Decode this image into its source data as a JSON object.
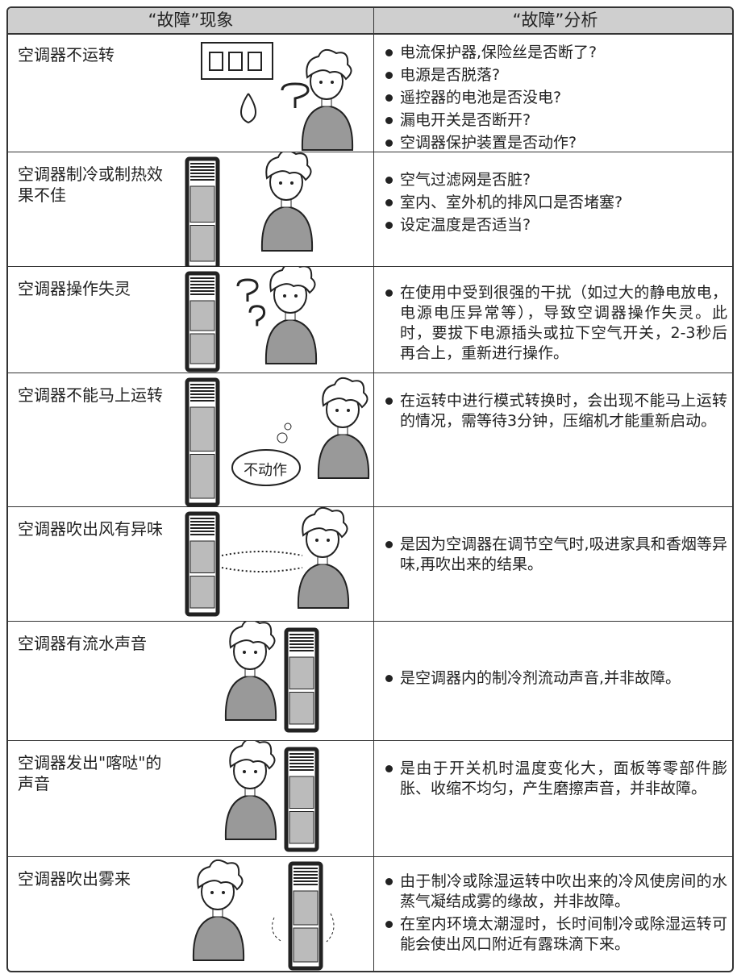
{
  "table": {
    "headers": [
      "“故障”现象",
      "“故障”分析"
    ],
    "rows": [
      {
        "symptom": "空调器不运转",
        "items": [
          "电流保护器,保险丝是否断了?",
          "电源是否脱落?",
          "遥控器的电池是否没电?",
          "漏电开关是否断开?",
          "空调器保护装置是否动作?"
        ]
      },
      {
        "symptom": "空调器制冷或制热效果不佳",
        "items": [
          "空气过滤网是否脏?",
          "室内、室外机的排风口是否堵塞?",
          "设定温度是否适当?"
        ]
      },
      {
        "symptom": "空调器操作失灵",
        "items": [
          "在使用中受到很强的干扰（如过大的静电放电，电源电压异常等），导致空调器操作失灵。此时，要拔下电源插头或拉下空气开关，2-3秒后再合上，重新进行操作。"
        ]
      },
      {
        "symptom": "空调器不能马上运转",
        "items": [
          "在运转中进行模式转换时，会出现不能马上运转的情况，需等待3分钟，压缩机才能重新启动。"
        ],
        "bubble": "不动作"
      },
      {
        "symptom": "空调器吹出风有异味",
        "items": [
          "是因为空调器在调节空气时,吸进家具和香烟等异味,再吹出来的结果。"
        ]
      },
      {
        "symptom": "空调器有流水声音",
        "items": [
          "是空调器内的制冷剂流动声音,并非故障。"
        ]
      },
      {
        "symptom": "空调器发出\"喀哒\"的声音",
        "items": [
          "是由于开关机时温度变化大，面板等零部件膨胀、收缩不均匀，产生磨擦声音，并非故障。"
        ]
      },
      {
        "symptom": "空调器吹出雾来",
        "items": [
          "由于制冷或除湿运转中吹出来的冷风使房间的水蒸气凝结成雾的缘故，并非故障。",
          "在室内环境太潮湿时，长时间制冷或除湿运转可能会使出风口附近有露珠滴下来。"
        ]
      }
    ]
  }
}
